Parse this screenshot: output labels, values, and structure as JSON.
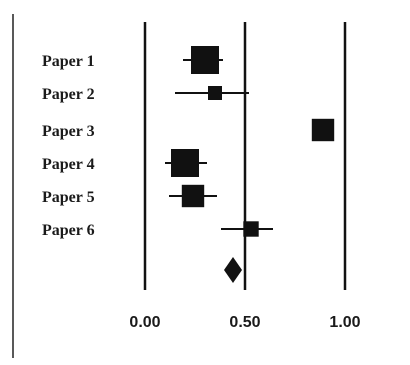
{
  "chart_data": {
    "type": "forest",
    "x_ticks": [
      {
        "value": 0.0,
        "label": "0.00"
      },
      {
        "value": 0.5,
        "label": "0.50"
      },
      {
        "value": 1.0,
        "label": "1.00"
      }
    ],
    "xlim": [
      -0.05,
      1.05
    ],
    "studies": [
      {
        "label": "Paper 1",
        "estimate": 0.3,
        "ci_low": 0.19,
        "ci_high": 0.39,
        "weight": 1.0
      },
      {
        "label": "Paper 2",
        "estimate": 0.35,
        "ci_low": 0.15,
        "ci_high": 0.52,
        "weight": 0.5
      },
      {
        "label": "Paper 3",
        "estimate": 0.89,
        "ci_low": 0.89,
        "ci_high": 0.89,
        "weight": 0.8
      },
      {
        "label": "Paper 4",
        "estimate": 0.2,
        "ci_low": 0.1,
        "ci_high": 0.31,
        "weight": 1.0
      },
      {
        "label": "Paper 5",
        "estimate": 0.24,
        "ci_low": 0.12,
        "ci_high": 0.36,
        "weight": 0.8
      },
      {
        "label": "Paper 6",
        "estimate": 0.53,
        "ci_low": 0.38,
        "ci_high": 0.64,
        "weight": 0.55
      }
    ],
    "pooled": {
      "estimate": 0.44
    },
    "reference_lines": [
      0.0,
      0.5,
      1.0
    ]
  },
  "colors": {
    "ink": "#111111",
    "background": "#ffffff",
    "frame": "#222222"
  }
}
